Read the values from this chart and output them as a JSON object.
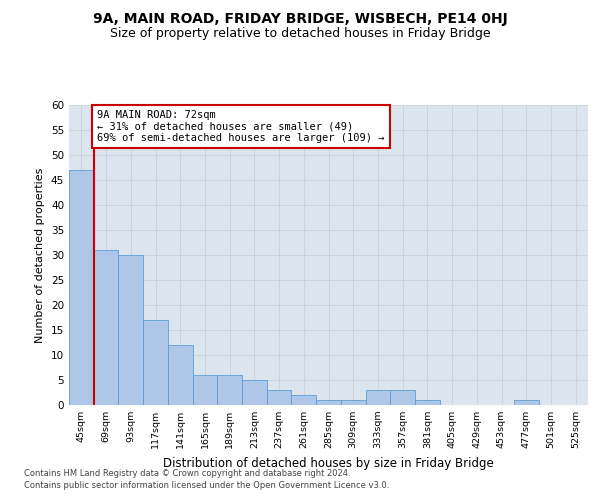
{
  "title": "9A, MAIN ROAD, FRIDAY BRIDGE, WISBECH, PE14 0HJ",
  "subtitle": "Size of property relative to detached houses in Friday Bridge",
  "xlabel": "Distribution of detached houses by size in Friday Bridge",
  "ylabel": "Number of detached properties",
  "categories": [
    "45sqm",
    "69sqm",
    "93sqm",
    "117sqm",
    "141sqm",
    "165sqm",
    "189sqm",
    "213sqm",
    "237sqm",
    "261sqm",
    "285sqm",
    "309sqm",
    "333sqm",
    "357sqm",
    "381sqm",
    "405sqm",
    "429sqm",
    "453sqm",
    "477sqm",
    "501sqm",
    "525sqm"
  ],
  "values": [
    47,
    31,
    30,
    17,
    12,
    6,
    6,
    5,
    3,
    2,
    1,
    1,
    3,
    3,
    1,
    0,
    0,
    0,
    1,
    0,
    0
  ],
  "bar_color": "#aec6e8",
  "bar_edge_color": "#5a9fd4",
  "vline_x": 0.5,
  "vline_color": "#cc0000",
  "annotation_text": "9A MAIN ROAD: 72sqm\n← 31% of detached houses are smaller (49)\n69% of semi-detached houses are larger (109) →",
  "annotation_box_color": "#ffffff",
  "annotation_box_edge": "#cc0000",
  "ylim": [
    0,
    60
  ],
  "yticks": [
    0,
    5,
    10,
    15,
    20,
    25,
    30,
    35,
    40,
    45,
    50,
    55,
    60
  ],
  "grid_color": "#c8d0d8",
  "bg_color": "#dce4ee",
  "footer_line1": "Contains HM Land Registry data © Crown copyright and database right 2024.",
  "footer_line2": "Contains public sector information licensed under the Open Government Licence v3.0.",
  "title_fontsize": 10,
  "subtitle_fontsize": 9,
  "ylabel_fontsize": 8,
  "xlabel_fontsize": 8.5
}
